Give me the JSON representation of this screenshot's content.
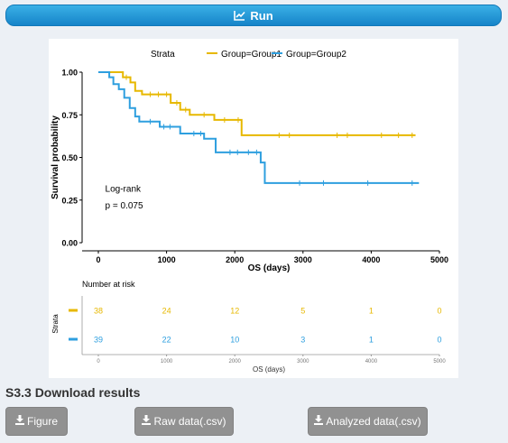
{
  "run_button": {
    "label": "Run",
    "icon": "line-chart-icon"
  },
  "section_title": "S3.3 Download results",
  "download_buttons": [
    {
      "label": "Figure",
      "icon": "download-icon"
    },
    {
      "label": "Raw data(.csv)",
      "icon": "download-icon"
    },
    {
      "label": "Analyzed data(.csv)",
      "icon": "download-icon"
    }
  ],
  "colors": {
    "group1": "#e7b800",
    "group2": "#2e9fdf",
    "run_button": "#1f93d6",
    "download_button": "#919191"
  },
  "chart_data": {
    "type": "line",
    "subtype": "kaplan-meier",
    "xlabel": "OS (days)",
    "ylabel": "Survival probability",
    "xlim": [
      0,
      5000
    ],
    "ylim": [
      0,
      1
    ],
    "x_ticks": [
      0,
      1000,
      2000,
      3000,
      4000,
      5000
    ],
    "y_ticks": [
      "0.00",
      "0.25",
      "0.50",
      "0.75",
      "1.00"
    ],
    "legend": {
      "title": "Strata",
      "position": "top"
    },
    "annotation": [
      "Log-rank",
      "p = 0.075"
    ],
    "series": [
      {
        "name": "Group=Group1",
        "steps": [
          [
            0,
            1.0
          ],
          [
            360,
            0.97
          ],
          [
            470,
            0.94
          ],
          [
            540,
            0.89
          ],
          [
            640,
            0.87
          ],
          [
            1060,
            0.82
          ],
          [
            1200,
            0.78
          ],
          [
            1340,
            0.75
          ],
          [
            1700,
            0.72
          ],
          [
            2100,
            0.63
          ],
          [
            4650,
            0.63
          ]
        ],
        "censored": [
          410,
          760,
          880,
          1000,
          1150,
          1280,
          1550,
          1850,
          2050,
          2650,
          2800,
          3500,
          3650,
          4150,
          4400,
          4600
        ]
      },
      {
        "name": "Group=Group2",
        "steps": [
          [
            0,
            1.0
          ],
          [
            160,
            0.97
          ],
          [
            220,
            0.93
          ],
          [
            300,
            0.9
          ],
          [
            380,
            0.85
          ],
          [
            460,
            0.79
          ],
          [
            540,
            0.74
          ],
          [
            600,
            0.71
          ],
          [
            900,
            0.68
          ],
          [
            1200,
            0.64
          ],
          [
            1550,
            0.61
          ],
          [
            1720,
            0.53
          ],
          [
            2380,
            0.47
          ],
          [
            2440,
            0.35
          ],
          [
            4700,
            0.35
          ]
        ],
        "censored": [
          760,
          960,
          1050,
          1400,
          1500,
          1930,
          2040,
          2200,
          2320,
          2950,
          3300,
          3950,
          4600
        ]
      }
    ],
    "risk_table": {
      "title": "Number at risk",
      "strata_label": "Strata",
      "xlabel": "OS (days)",
      "times": [
        0,
        1000,
        2000,
        3000,
        4000,
        5000
      ],
      "rows": [
        {
          "name": "Group1",
          "counts": [
            38,
            24,
            12,
            5,
            1,
            0
          ]
        },
        {
          "name": "Group2",
          "counts": [
            39,
            22,
            10,
            3,
            1,
            0
          ]
        }
      ]
    }
  }
}
